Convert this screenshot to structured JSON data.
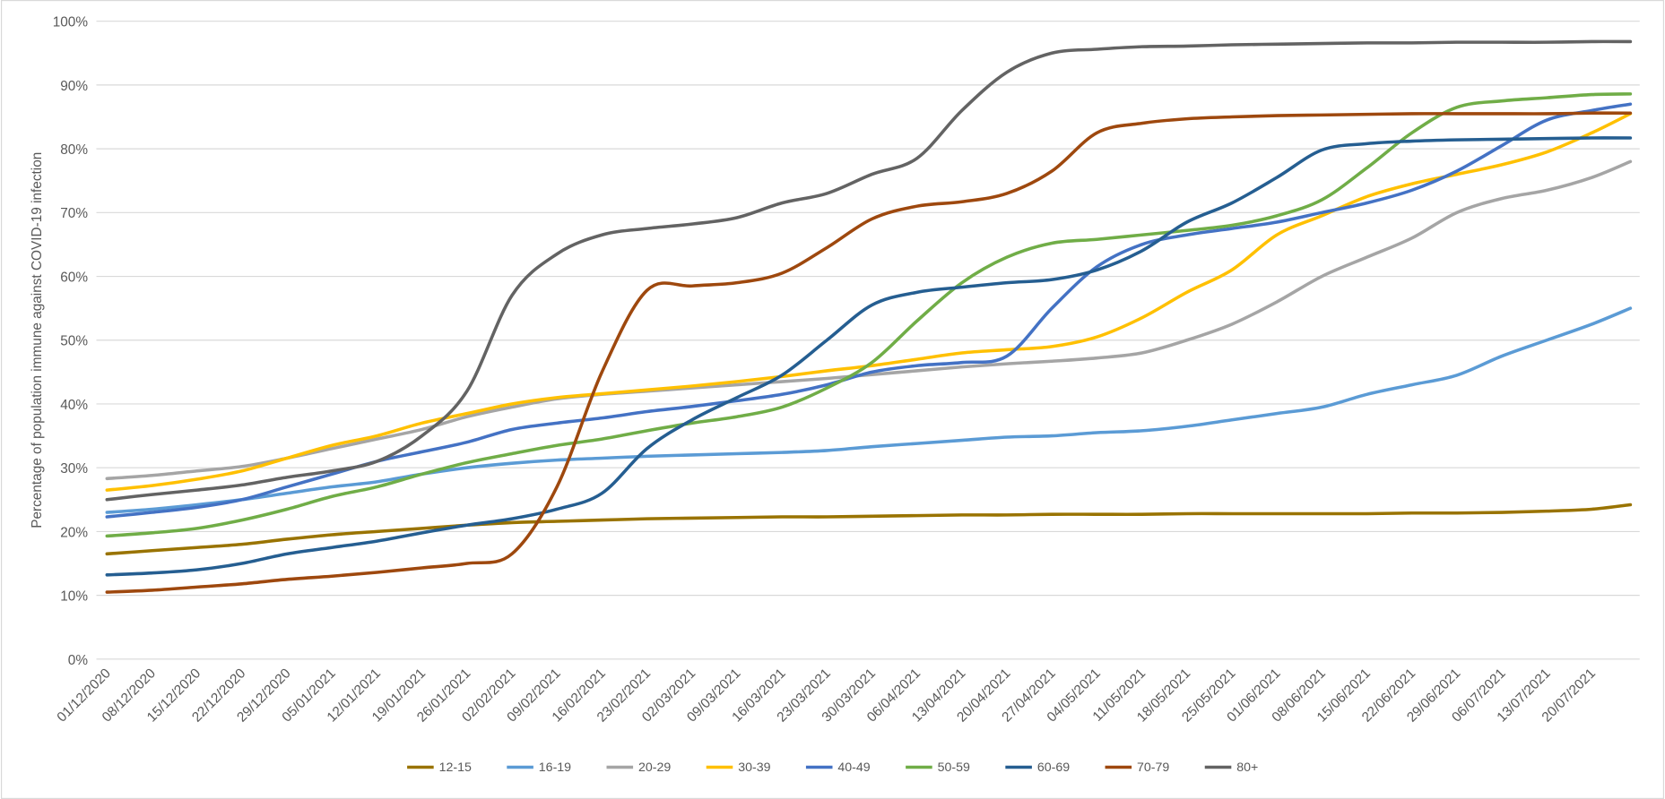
{
  "chart_data": {
    "type": "line",
    "title": "",
    "xlabel": "",
    "ylabel": "Percentage of population immune against COVID-19 infection",
    "ylim": [
      0,
      100
    ],
    "y_ticks": [
      "0%",
      "10%",
      "20%",
      "30%",
      "40%",
      "50%",
      "60%",
      "70%",
      "80%",
      "90%",
      "100%"
    ],
    "grid": true,
    "legend_position": "bottom",
    "x_tick_labels": [
      "01/12/2020",
      "08/12/2020",
      "15/12/2020",
      "22/12/2020",
      "29/12/2020",
      "05/01/2021",
      "12/01/2021",
      "19/01/2021",
      "26/01/2021",
      "02/02/2021",
      "09/02/2021",
      "16/02/2021",
      "23/02/2021",
      "02/03/2021",
      "09/03/2021",
      "16/03/2021",
      "23/03/2021",
      "30/03/2021",
      "06/04/2021",
      "13/04/2021",
      "20/04/2021",
      "27/04/2021",
      "04/05/2021",
      "11/05/2021",
      "18/05/2021",
      "25/05/2021",
      "01/06/2021",
      "08/06/2021",
      "15/06/2021",
      "22/06/2021",
      "29/06/2021",
      "06/07/2021",
      "13/07/2021",
      "20/07/2021"
    ],
    "x": [
      "01/12/2020",
      "08/12/2020",
      "15/12/2020",
      "22/12/2020",
      "29/12/2020",
      "05/01/2021",
      "12/01/2021",
      "19/01/2021",
      "26/01/2021",
      "02/02/2021",
      "09/02/2021",
      "16/02/2021",
      "23/02/2021",
      "02/03/2021",
      "09/03/2021",
      "16/03/2021",
      "23/03/2021",
      "30/03/2021",
      "06/04/2021",
      "13/04/2021",
      "20/04/2021",
      "27/04/2021",
      "04/05/2021",
      "11/05/2021",
      "18/05/2021",
      "25/05/2021",
      "01/06/2021",
      "08/06/2021",
      "15/06/2021",
      "22/06/2021",
      "29/06/2021",
      "06/07/2021",
      "13/07/2021",
      "20/07/2021",
      "26/07/2021"
    ],
    "series": [
      {
        "name": "12-15",
        "color": "#997300",
        "values": [
          16.5,
          17,
          17.5,
          18,
          18.8,
          19.5,
          20,
          20.5,
          21,
          21.4,
          21.6,
          21.8,
          22,
          22.1,
          22.2,
          22.3,
          22.3,
          22.4,
          22.5,
          22.6,
          22.6,
          22.7,
          22.7,
          22.7,
          22.8,
          22.8,
          22.8,
          22.8,
          22.8,
          22.9,
          22.9,
          23.0,
          23.2,
          23.5,
          24.2
        ]
      },
      {
        "name": "16-19",
        "color": "#5B9BD5",
        "values": [
          23,
          23.5,
          24.2,
          25,
          26,
          27,
          27.8,
          29,
          30,
          30.7,
          31.2,
          31.5,
          31.8,
          32,
          32.2,
          32.4,
          32.7,
          33.3,
          33.8,
          34.3,
          34.8,
          35,
          35.5,
          35.8,
          36.5,
          37.5,
          38.5,
          39.5,
          41.5,
          43,
          44.5,
          47.5,
          50,
          52.5,
          55
        ]
      },
      {
        "name": "20-29",
        "color": "#A5A5A5",
        "values": [
          28.3,
          28.8,
          29.5,
          30.2,
          31.5,
          33,
          34.5,
          36,
          38,
          39.5,
          40.8,
          41.5,
          42,
          42.5,
          43,
          43.5,
          44,
          44.6,
          45.2,
          45.8,
          46.3,
          46.7,
          47.2,
          48,
          50,
          52.5,
          56,
          60,
          63,
          66,
          70,
          72.2,
          73.5,
          75.5,
          78
        ]
      },
      {
        "name": "30-39",
        "color": "#FFC000",
        "values": [
          26.5,
          27.2,
          28.2,
          29.5,
          31.5,
          33.5,
          35,
          37,
          38.5,
          40,
          41,
          41.6,
          42.2,
          42.8,
          43.5,
          44.3,
          45.2,
          46,
          47,
          48,
          48.5,
          49,
          50.5,
          53.5,
          57.5,
          61,
          66.5,
          69.5,
          72.5,
          74.5,
          76,
          77.5,
          79.5,
          82.5,
          85.5
        ]
      },
      {
        "name": "40-49",
        "color": "#4472C4",
        "values": [
          22.3,
          23,
          23.8,
          25,
          27,
          29,
          31,
          32.5,
          34,
          36,
          37,
          37.8,
          38.8,
          39.6,
          40.5,
          41.5,
          43,
          45,
          46,
          46.5,
          47.5,
          55,
          61.5,
          65,
          66.5,
          67.5,
          68.5,
          70,
          71.5,
          73.5,
          76.5,
          80.5,
          84.5,
          86,
          87
        ]
      },
      {
        "name": "50-59",
        "color": "#70AD47",
        "values": [
          19.3,
          19.8,
          20.5,
          21.8,
          23.5,
          25.5,
          27,
          29,
          30.8,
          32.2,
          33.5,
          34.5,
          35.8,
          37,
          38,
          39.5,
          42.5,
          46.5,
          53,
          59,
          63,
          65.2,
          65.8,
          66.5,
          67.2,
          68,
          69.5,
          72,
          77,
          82.5,
          86.5,
          87.5,
          88,
          88.5,
          88.6
        ]
      },
      {
        "name": "60-69",
        "color": "#255E91",
        "values": [
          13.2,
          13.5,
          14,
          15,
          16.5,
          17.5,
          18.5,
          19.8,
          21,
          22,
          23.5,
          26,
          33,
          37.5,
          41,
          44.5,
          50,
          55.5,
          57.5,
          58.3,
          59,
          59.5,
          61,
          64,
          68.5,
          71.5,
          75.5,
          79.8,
          80.8,
          81.2,
          81.4,
          81.5,
          81.6,
          81.7,
          81.7
        ]
      },
      {
        "name": "70-79",
        "color": "#9E480E",
        "values": [
          10.5,
          10.8,
          11.3,
          11.8,
          12.5,
          13,
          13.6,
          14.3,
          15,
          16.5,
          27,
          45,
          57.8,
          58.5,
          59,
          60.5,
          64.5,
          69,
          71,
          71.7,
          73,
          76.5,
          82.5,
          84,
          84.7,
          85,
          85.2,
          85.3,
          85.4,
          85.5,
          85.5,
          85.5,
          85.5,
          85.6,
          85.6
        ]
      },
      {
        "name": "80+",
        "color": "#636363",
        "values": [
          25,
          25.8,
          26.5,
          27.3,
          28.5,
          29.5,
          31,
          35,
          42,
          57,
          63.5,
          66.5,
          67.5,
          68.2,
          69.2,
          71.5,
          73,
          76,
          78.5,
          86,
          92,
          95,
          95.6,
          96,
          96.1,
          96.3,
          96.4,
          96.5,
          96.6,
          96.6,
          96.7,
          96.7,
          96.7,
          96.8,
          96.8
        ]
      }
    ]
  }
}
